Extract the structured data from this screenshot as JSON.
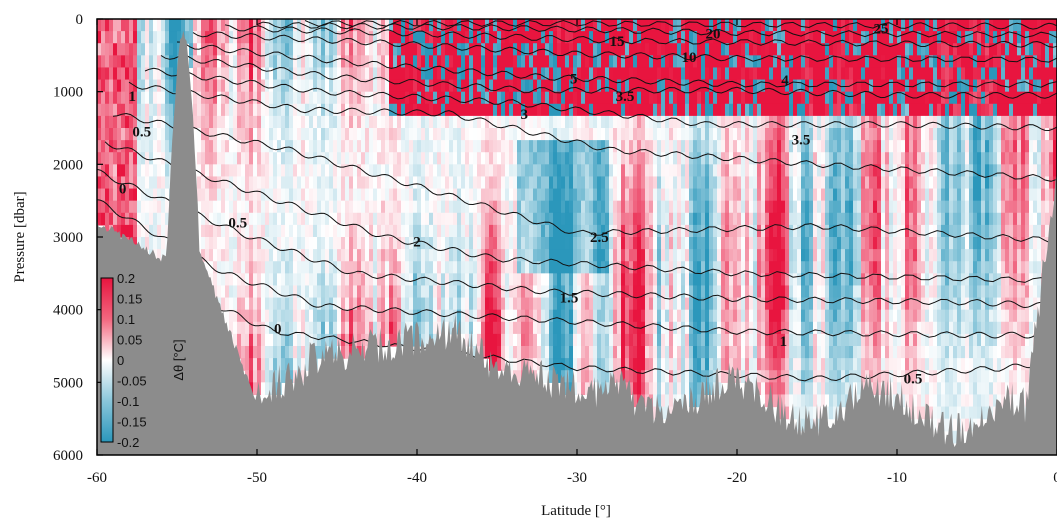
{
  "chart_data": {
    "type": "heatmap",
    "xlabel": "Latitude [°]",
    "ylabel": "Pressure [dbar]",
    "xlim": [
      -60,
      0
    ],
    "ylim": [
      6000,
      0
    ],
    "x_ticks": [
      -60,
      -50,
      -40,
      -30,
      -20,
      -10,
      0
    ],
    "y_ticks": [
      0,
      1000,
      2000,
      3000,
      4000,
      5000,
      6000
    ],
    "colorbar": {
      "label": "Δθ [°C]",
      "range": [
        -0.2,
        0.2
      ],
      "ticks": [
        "0.2",
        "0.15",
        "0.1",
        "0.05",
        "0",
        "-0.05",
        "-0.1",
        "-0.15",
        "-0.2"
      ],
      "colors": {
        "positive": "#e8153f",
        "zero": "#ffffff",
        "negative": "#2b97bb"
      }
    },
    "contour_labels": [
      {
        "text": "25",
        "lat": -11.0,
        "p": 130
      },
      {
        "text": "20",
        "lat": -21.5,
        "p": 200
      },
      {
        "text": "15",
        "lat": -27.5,
        "p": 300
      },
      {
        "text": "10",
        "lat": -23.0,
        "p": 520
      },
      {
        "text": "5",
        "lat": -30.2,
        "p": 820
      },
      {
        "text": "4",
        "lat": -17.0,
        "p": 840
      },
      {
        "text": "3.5",
        "lat": -27.0,
        "p": 1060
      },
      {
        "text": "3",
        "lat": -33.3,
        "p": 1310
      },
      {
        "text": "3.5",
        "lat": -16.0,
        "p": 1660
      },
      {
        "text": "1",
        "lat": -57.8,
        "p": 1060
      },
      {
        "text": "0.5",
        "lat": -57.2,
        "p": 1550
      },
      {
        "text": "0",
        "lat": -58.4,
        "p": 2330
      },
      {
        "text": "0.5",
        "lat": -51.2,
        "p": 2800
      },
      {
        "text": "2",
        "lat": -40.0,
        "p": 3060
      },
      {
        "text": "2.5",
        "lat": -28.6,
        "p": 3000
      },
      {
        "text": "1.5",
        "lat": -30.5,
        "p": 3830
      },
      {
        "text": "0",
        "lat": -48.7,
        "p": 4260
      },
      {
        "text": "1",
        "lat": -17.1,
        "p": 4430
      },
      {
        "text": "0.5",
        "lat": -9.0,
        "p": 4950
      }
    ],
    "contour_values": [
      25,
      20,
      15,
      10,
      5,
      4,
      3.5,
      3,
      2.5,
      2,
      1.5,
      1,
      0.5,
      0
    ],
    "bathymetry_color": "#8c8c8c",
    "grid": false
  }
}
